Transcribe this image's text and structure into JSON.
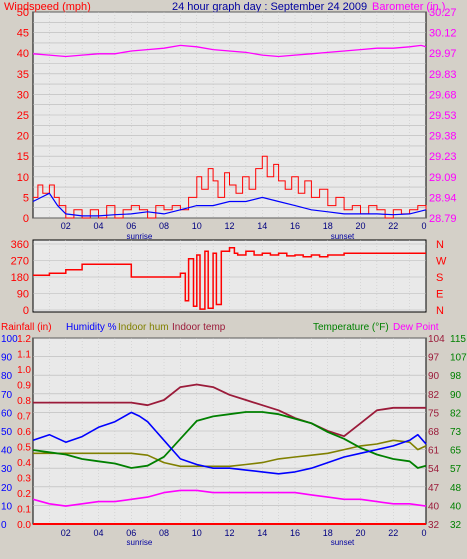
{
  "chart_data": [
    {
      "type": "line",
      "title": "24 hour graph day : September 24 2009",
      "left_label": "Windspeed (mph)",
      "right_label": "Barometer (in.)",
      "left_ticks": [
        "0",
        "2.5",
        "5",
        "7.5",
        "10",
        "12.5",
        "15",
        "17.5",
        "20",
        "22.5",
        "25",
        "27.5",
        "30",
        "32.5",
        "35",
        "37.5",
        "40",
        "42.5",
        "45",
        "47.5",
        "50"
      ],
      "left_tick_labels": [
        "0",
        "5",
        "10",
        "15",
        "20",
        "25",
        "30",
        "35",
        "40",
        "45",
        "50"
      ],
      "right_tick_labels": [
        "28.79",
        "28.94",
        "29.09",
        "29.23",
        "29.38",
        "29.53",
        "29.68",
        "29.83",
        "29.97",
        "30.12",
        "30.27"
      ],
      "ylim_left": [
        0,
        50
      ],
      "ylim_right": [
        28.79,
        30.27
      ],
      "x_tick_labels": [
        "02",
        "04",
        "06",
        "08",
        "10",
        "12",
        "14",
        "16",
        "18",
        "20",
        "22",
        "0"
      ],
      "sunrise_label": "sunrise",
      "sunset_label": "sunset",
      "sunrise_hour": 6.5,
      "sunset_hour": 18.9,
      "colors": {
        "gust": "#ff0000",
        "avg": "#0000ff",
        "baro": "#ff00ff",
        "left": "#ff0000",
        "right": "#ff00ff",
        "title": "#0000a0"
      },
      "series": {
        "barometer": [
          [
            0,
            29.97
          ],
          [
            1,
            29.96
          ],
          [
            2,
            29.95
          ],
          [
            3,
            29.96
          ],
          [
            4,
            29.97
          ],
          [
            5,
            29.97
          ],
          [
            6,
            29.99
          ],
          [
            7,
            30.0
          ],
          [
            8,
            30.01
          ],
          [
            9,
            30.03
          ],
          [
            10,
            30.02
          ],
          [
            11,
            30.0
          ],
          [
            12,
            29.99
          ],
          [
            13,
            29.98
          ],
          [
            14,
            29.96
          ],
          [
            15,
            29.95
          ],
          [
            16,
            29.96
          ],
          [
            17,
            29.97
          ],
          [
            18,
            29.98
          ],
          [
            19,
            29.99
          ],
          [
            20,
            30.0
          ],
          [
            21,
            30.01
          ],
          [
            22,
            30.01
          ],
          [
            23,
            30.02
          ],
          [
            23.7,
            30.03
          ],
          [
            24,
            30.02
          ]
        ],
        "wind_avg": [
          [
            0,
            4
          ],
          [
            0.5,
            5
          ],
          [
            1,
            6
          ],
          [
            1.5,
            3
          ],
          [
            2,
            1
          ],
          [
            3,
            0.5
          ],
          [
            4,
            0.5
          ],
          [
            5,
            0.8
          ],
          [
            6,
            1
          ],
          [
            7,
            1.5
          ],
          [
            8,
            1
          ],
          [
            9,
            2
          ],
          [
            10,
            3
          ],
          [
            11,
            3
          ],
          [
            12,
            4
          ],
          [
            13,
            4
          ],
          [
            14,
            5
          ],
          [
            15,
            4
          ],
          [
            16,
            3
          ],
          [
            17,
            2
          ],
          [
            18,
            1.5
          ],
          [
            19,
            1
          ],
          [
            20,
            1
          ],
          [
            21,
            1
          ],
          [
            22,
            0.8
          ],
          [
            23,
            1
          ],
          [
            24,
            2
          ]
        ],
        "wind_gust": [
          [
            0,
            5
          ],
          [
            0.3,
            8
          ],
          [
            0.6,
            6
          ],
          [
            1,
            8
          ],
          [
            1.3,
            5
          ],
          [
            1.6,
            3
          ],
          [
            2,
            0
          ],
          [
            2.5,
            2
          ],
          [
            3,
            0
          ],
          [
            3.5,
            2
          ],
          [
            4,
            0
          ],
          [
            4.5,
            3
          ],
          [
            5,
            0
          ],
          [
            5.5,
            2
          ],
          [
            6,
            3
          ],
          [
            6.5,
            2
          ],
          [
            7,
            0
          ],
          [
            7.5,
            3
          ],
          [
            8,
            2
          ],
          [
            8.5,
            3
          ],
          [
            9,
            2
          ],
          [
            9.5,
            5
          ],
          [
            10,
            10
          ],
          [
            10.3,
            7
          ],
          [
            10.7,
            12
          ],
          [
            11,
            9
          ],
          [
            11.3,
            5
          ],
          [
            11.7,
            11
          ],
          [
            12,
            8
          ],
          [
            12.4,
            6
          ],
          [
            12.8,
            10
          ],
          [
            13.2,
            7
          ],
          [
            13.6,
            12
          ],
          [
            14,
            15
          ],
          [
            14.3,
            10
          ],
          [
            14.7,
            13
          ],
          [
            15,
            9
          ],
          [
            15.4,
            7
          ],
          [
            15.8,
            10
          ],
          [
            16.2,
            6
          ],
          [
            16.6,
            9
          ],
          [
            17,
            5
          ],
          [
            17.5,
            7
          ],
          [
            18,
            3
          ],
          [
            18.5,
            5
          ],
          [
            19,
            2
          ],
          [
            19.5,
            3
          ],
          [
            20,
            1
          ],
          [
            20.5,
            3
          ],
          [
            21,
            2
          ],
          [
            21.5,
            0
          ],
          [
            22,
            2
          ],
          [
            22.5,
            1
          ],
          [
            23,
            2
          ],
          [
            23.5,
            3
          ],
          [
            24,
            2
          ]
        ]
      }
    },
    {
      "type": "line",
      "title": "",
      "left_tick_labels": [
        "0",
        "90",
        "180",
        "270",
        "360"
      ],
      "right_tick_labels": [
        "N",
        "E",
        "S",
        "W",
        "N"
      ],
      "ylim": [
        0,
        360
      ],
      "x_tick_labels": [
        "02",
        "04",
        "06",
        "08",
        "10",
        "12",
        "14",
        "16",
        "18",
        "20",
        "22",
        "0"
      ],
      "colors": {
        "dir": "#ff0000",
        "left": "#ff0000",
        "right": "#ff0000"
      },
      "series": {
        "wind_dir": [
          [
            0,
            190
          ],
          [
            1,
            200
          ],
          [
            2,
            220
          ],
          [
            3,
            250
          ],
          [
            4,
            250
          ],
          [
            5,
            250
          ],
          [
            5.9,
            250
          ],
          [
            6,
            180
          ],
          [
            7,
            180
          ],
          [
            8,
            180
          ],
          [
            8.8,
            180
          ],
          [
            9,
            200
          ],
          [
            9.3,
            50
          ],
          [
            9.5,
            280
          ],
          [
            9.8,
            20
          ],
          [
            10,
            300
          ],
          [
            10.2,
            5
          ],
          [
            10.5,
            320
          ],
          [
            10.7,
            10
          ],
          [
            11,
            310
          ],
          [
            11.2,
            30
          ],
          [
            11.5,
            320
          ],
          [
            11.8,
            320
          ],
          [
            12,
            340
          ],
          [
            12.3,
            310
          ],
          [
            12.5,
            300
          ],
          [
            13,
            320
          ],
          [
            13.5,
            300
          ],
          [
            14,
            310
          ],
          [
            14.5,
            300
          ],
          [
            15,
            310
          ],
          [
            15.5,
            295
          ],
          [
            16,
            300
          ],
          [
            16.5,
            290
          ],
          [
            17,
            300
          ],
          [
            17.5,
            290
          ],
          [
            18,
            300
          ],
          [
            18.5,
            300
          ],
          [
            19,
            310
          ],
          [
            20,
            310
          ],
          [
            21,
            310
          ],
          [
            22,
            310
          ],
          [
            23,
            310
          ],
          [
            24,
            310
          ]
        ]
      }
    },
    {
      "type": "line",
      "title": "",
      "legend": [
        "Rainfall (in)",
        "Humidity %",
        "Indoor hum",
        "Indoor temp",
        "Temperature (°F)",
        "Dew Point"
      ],
      "rain_ticks": [
        "0.0",
        "0.1",
        "0.2",
        "0.3",
        "0.4",
        "0.5",
        "0.6",
        "0.7",
        "0.8",
        "0.9",
        "1.0",
        "1.1",
        "1.2"
      ],
      "hum_ticks": [
        "0",
        "10",
        "20",
        "30",
        "40",
        "50",
        "60",
        "70",
        "80",
        "90",
        "100"
      ],
      "indoor_temp_ticks": [
        "32",
        "40",
        "47",
        "54",
        "61",
        "68",
        "75",
        "82",
        "90",
        "97",
        "104"
      ],
      "temp_ticks": [
        "32",
        "40",
        "48",
        "57",
        "65",
        "73",
        "82",
        "90",
        "98",
        "107",
        "115"
      ],
      "x_tick_labels": [
        "02",
        "04",
        "06",
        "08",
        "10",
        "12",
        "14",
        "16",
        "18",
        "20",
        "22",
        "0"
      ],
      "sunrise_label": "sunrise",
      "sunset_label": "sunset",
      "colors": {
        "rain": "#ff0000",
        "hum": "#0000ff",
        "inhum": "#808000",
        "intemp": "#9b1b3a",
        "temp": "#008000",
        "dew": "#ff00ff"
      },
      "series": {
        "rainfall": [
          [
            0,
            0
          ],
          [
            24,
            0
          ]
        ],
        "humidity": [
          [
            0,
            45
          ],
          [
            1,
            48
          ],
          [
            2,
            44
          ],
          [
            3,
            47
          ],
          [
            4,
            52
          ],
          [
            5,
            55
          ],
          [
            6,
            60
          ],
          [
            6.5,
            58
          ],
          [
            7,
            55
          ],
          [
            7.5,
            50
          ],
          [
            8,
            45
          ],
          [
            8.5,
            40
          ],
          [
            9,
            35
          ],
          [
            10,
            32
          ],
          [
            11,
            30
          ],
          [
            12,
            30
          ],
          [
            13,
            29
          ],
          [
            14,
            28
          ],
          [
            15,
            27
          ],
          [
            16,
            28
          ],
          [
            17,
            30
          ],
          [
            18,
            33
          ],
          [
            19,
            36
          ],
          [
            20,
            38
          ],
          [
            21,
            40
          ],
          [
            22,
            42
          ],
          [
            23,
            45
          ],
          [
            23.5,
            48
          ],
          [
            24,
            43
          ]
        ],
        "indoor_hum": [
          [
            0,
            38
          ],
          [
            2,
            38
          ],
          [
            4,
            38
          ],
          [
            6,
            38
          ],
          [
            7,
            37
          ],
          [
            8,
            33
          ],
          [
            9,
            31
          ],
          [
            10,
            31
          ],
          [
            11,
            31
          ],
          [
            12,
            31
          ],
          [
            13,
            32
          ],
          [
            14,
            33
          ],
          [
            15,
            35
          ],
          [
            16,
            36
          ],
          [
            17,
            37
          ],
          [
            18,
            38
          ],
          [
            19,
            40
          ],
          [
            20,
            42
          ],
          [
            21,
            43
          ],
          [
            22,
            45
          ],
          [
            23,
            44
          ],
          [
            23.5,
            40
          ],
          [
            24,
            42
          ]
        ],
        "indoor_temp": [
          [
            0,
            79
          ],
          [
            2,
            79
          ],
          [
            4,
            79
          ],
          [
            6,
            79
          ],
          [
            7,
            78
          ],
          [
            8,
            80
          ],
          [
            9,
            85
          ],
          [
            10,
            86
          ],
          [
            11,
            85
          ],
          [
            12,
            82
          ],
          [
            13,
            80
          ],
          [
            14,
            78
          ],
          [
            15,
            76
          ],
          [
            16,
            73
          ],
          [
            17,
            71
          ],
          [
            18,
            68
          ],
          [
            19,
            66
          ],
          [
            20,
            71
          ],
          [
            21,
            76
          ],
          [
            22,
            77
          ],
          [
            23,
            77
          ],
          [
            24,
            77
          ]
        ],
        "temperature": [
          [
            0,
            65
          ],
          [
            1,
            64
          ],
          [
            2,
            63
          ],
          [
            3,
            61
          ],
          [
            4,
            60
          ],
          [
            5,
            59
          ],
          [
            6,
            57
          ],
          [
            7,
            58
          ],
          [
            8,
            62
          ],
          [
            9,
            70
          ],
          [
            10,
            78
          ],
          [
            11,
            80
          ],
          [
            12,
            81
          ],
          [
            13,
            82
          ],
          [
            14,
            82
          ],
          [
            15,
            81
          ],
          [
            16,
            79
          ],
          [
            17,
            77
          ],
          [
            18,
            73
          ],
          [
            19,
            70
          ],
          [
            20,
            66
          ],
          [
            21,
            63
          ],
          [
            22,
            61
          ],
          [
            23,
            60
          ],
          [
            23.5,
            57
          ],
          [
            24,
            58
          ]
        ],
        "dew_point": [
          [
            0,
            43
          ],
          [
            1,
            41
          ],
          [
            2,
            40
          ],
          [
            3,
            41
          ],
          [
            4,
            42
          ],
          [
            5,
            42
          ],
          [
            6,
            43
          ],
          [
            7,
            44
          ],
          [
            8,
            46
          ],
          [
            9,
            47
          ],
          [
            10,
            47
          ],
          [
            11,
            46
          ],
          [
            12,
            46
          ],
          [
            13,
            46
          ],
          [
            14,
            46
          ],
          [
            15,
            46
          ],
          [
            16,
            46
          ],
          [
            17,
            45
          ],
          [
            18,
            44
          ],
          [
            19,
            43
          ],
          [
            20,
            43
          ],
          [
            21,
            42
          ],
          [
            22,
            41
          ],
          [
            23,
            41
          ],
          [
            24,
            40
          ]
        ]
      }
    }
  ]
}
